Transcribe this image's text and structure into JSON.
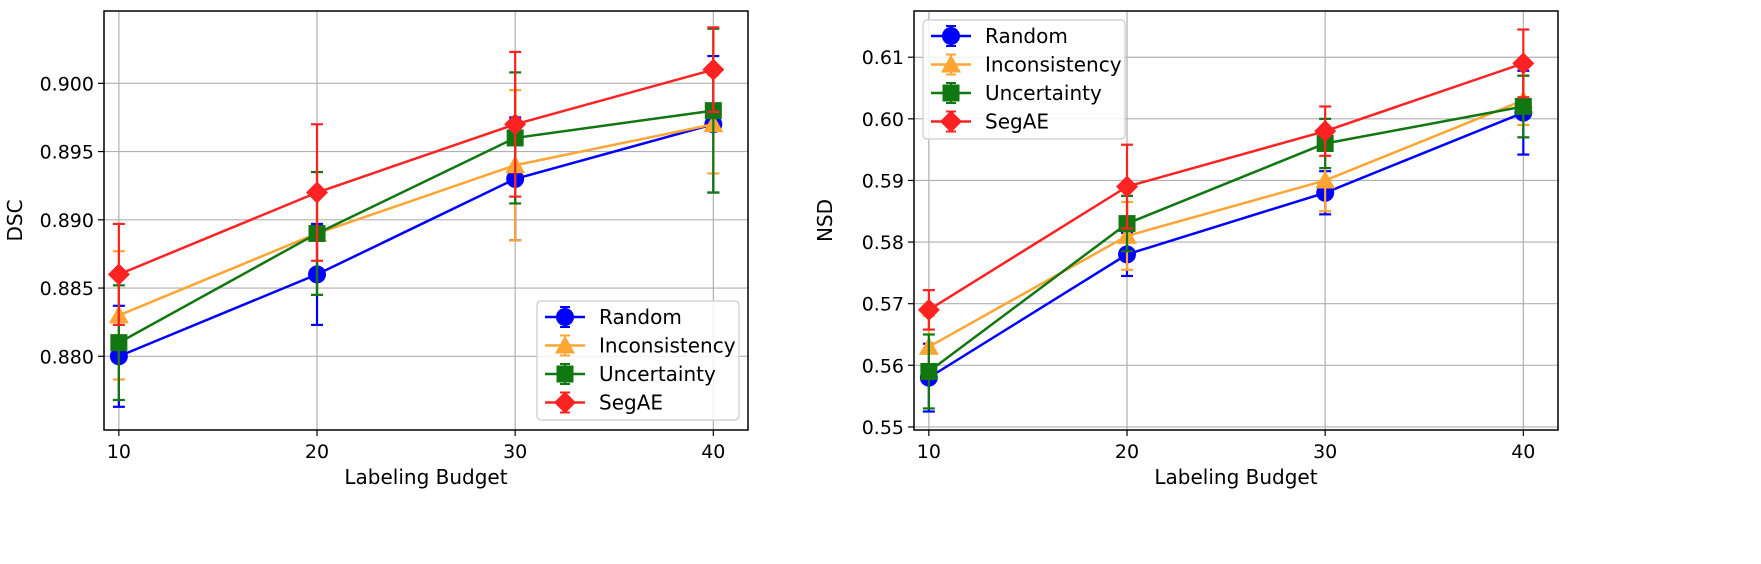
{
  "chart_data": [
    {
      "type": "line",
      "xlabel": "Labeling Budget",
      "ylabel": "DSC",
      "x": [
        10,
        20,
        30,
        40
      ],
      "xlim": [
        9.25,
        41.75
      ],
      "ylim": [
        0.8746,
        0.9053
      ],
      "xticks": [
        10,
        20,
        30,
        40
      ],
      "yticks": [
        "0.880",
        "0.885",
        "0.890",
        "0.895",
        "0.900"
      ],
      "grid": true,
      "legend_position": "lower-right",
      "series": [
        {
          "name": "Random",
          "color": "#0000ff",
          "marker": "circle",
          "values": [
            0.88,
            0.886,
            0.893,
            0.897
          ],
          "errors": [
            0.0037,
            0.0037,
            0.0045,
            0.005
          ]
        },
        {
          "name": "Inconsistency",
          "color": "#ffa533",
          "marker": "triangle",
          "values": [
            0.883,
            0.889,
            0.894,
            0.897
          ],
          "errors": [
            0.0047,
            0.0045,
            0.0055,
            0.0036
          ]
        },
        {
          "name": "Uncertainty",
          "color": "#117711",
          "marker": "square",
          "values": [
            0.881,
            0.889,
            0.896,
            0.898
          ],
          "errors": [
            0.0042,
            0.0045,
            0.0048,
            0.006
          ]
        },
        {
          "name": "SegAE",
          "color": "#ff2222",
          "marker": "diamond",
          "values": [
            0.886,
            0.892,
            0.897,
            0.901
          ],
          "errors": [
            0.0037,
            0.005,
            0.0053,
            0.0031
          ]
        }
      ]
    },
    {
      "type": "line",
      "xlabel": "Labeling Budget",
      "ylabel": "NSD",
      "x": [
        10,
        20,
        30,
        40
      ],
      "xlim": [
        9.25,
        41.75
      ],
      "ylim": [
        0.5495,
        0.6175
      ],
      "xticks": [
        10,
        20,
        30,
        40
      ],
      "yticks": [
        "0.55",
        "0.56",
        "0.57",
        "0.58",
        "0.59",
        "0.60",
        "0.61"
      ],
      "grid": true,
      "legend_position": "upper-left",
      "series": [
        {
          "name": "Random",
          "color": "#0000ff",
          "marker": "circle",
          "values": [
            0.558,
            0.578,
            0.588,
            0.601
          ],
          "errors": [
            0.0055,
            0.0035,
            0.0035,
            0.0068
          ]
        },
        {
          "name": "Inconsistency",
          "color": "#ffa533",
          "marker": "triangle",
          "values": [
            0.563,
            0.581,
            0.59,
            0.603
          ],
          "errors": [
            0.005,
            0.0055,
            0.005,
            0.004
          ]
        },
        {
          "name": "Uncertainty",
          "color": "#117711",
          "marker": "square",
          "values": [
            0.559,
            0.583,
            0.596,
            0.602
          ],
          "errors": [
            0.006,
            0.0045,
            0.004,
            0.005
          ]
        },
        {
          "name": "SegAE",
          "color": "#ff2222",
          "marker": "diamond",
          "values": [
            0.569,
            0.589,
            0.598,
            0.609
          ],
          "errors": [
            0.0032,
            0.0068,
            0.004,
            0.0055
          ]
        }
      ]
    }
  ]
}
